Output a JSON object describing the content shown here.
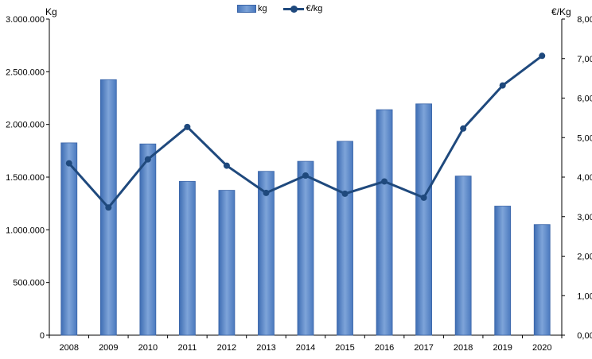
{
  "chart_data": {
    "type": "bar",
    "categories": [
      "2008",
      "2009",
      "2010",
      "2011",
      "2012",
      "2013",
      "2014",
      "2015",
      "2016",
      "2017",
      "2018",
      "2019",
      "2020"
    ],
    "series": [
      {
        "name": "kg",
        "type": "bar",
        "axis": "left",
        "values": [
          1825000,
          2425000,
          1815000,
          1460000,
          1375000,
          1555000,
          1650000,
          1840000,
          2140000,
          2195000,
          1510000,
          1225000,
          1050000
        ]
      },
      {
        "name": "€/kg",
        "type": "line",
        "axis": "right",
        "values": [
          4.35,
          3.23,
          4.45,
          5.27,
          4.29,
          3.6,
          4.04,
          3.58,
          3.89,
          3.48,
          5.23,
          6.32,
          7.07
        ]
      }
    ],
    "ylabel": "Kg",
    "ylabel_right": "€/Kg",
    "ylim": [
      0,
      3000000
    ],
    "ylim_right": [
      0,
      8
    ],
    "yticks": [
      "0",
      "500.000",
      "1.000.000",
      "1.500.000",
      "2.000.000",
      "2.500.000",
      "3.000.000"
    ],
    "yticks_right": [
      "0,00",
      "1,00",
      "2,00",
      "3,00",
      "4,00",
      "5,00",
      "6,00",
      "7,00",
      "8,00"
    ],
    "grid": false,
    "legend_position": "top-center",
    "colors": {
      "bar": "#5b8bd0",
      "bar_edge": "#3b65a8",
      "line": "#1f497d"
    }
  }
}
